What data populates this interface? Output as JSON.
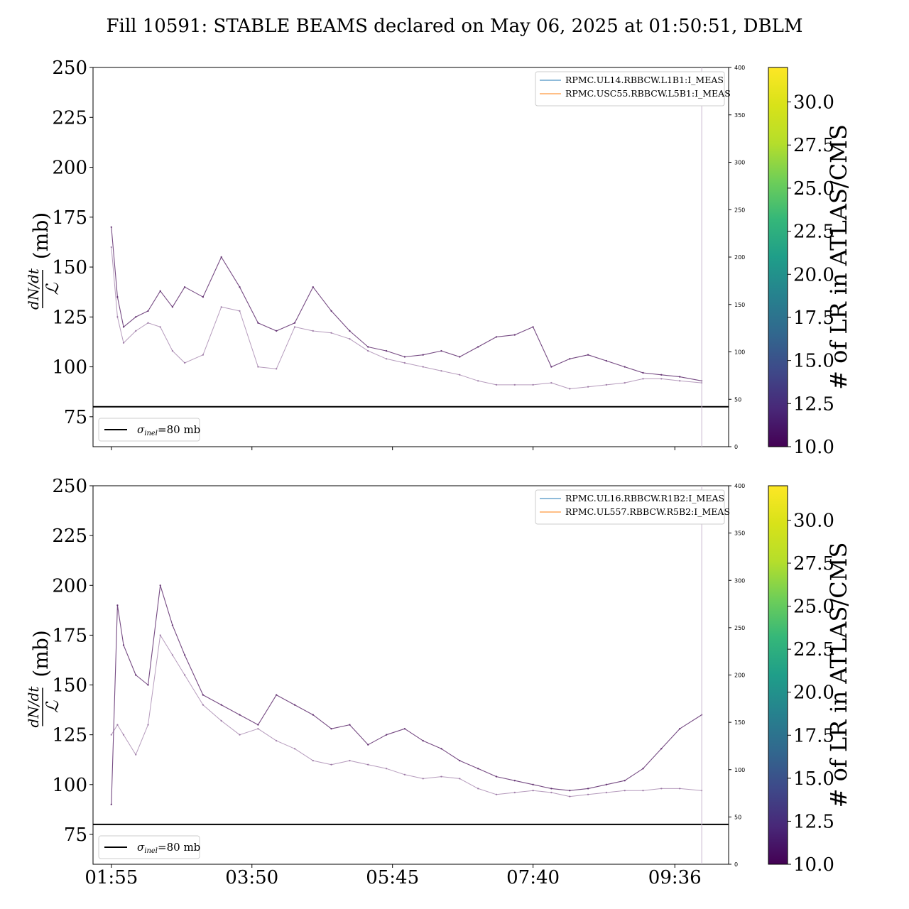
{
  "title": "Fill 10591: STABLE BEAMS declared on May 06, 2025 at 01:50:51, DBLM",
  "chart_data": [
    {
      "type": "line",
      "panel": "top",
      "ylabel_frac_num": "dN/dt",
      "ylabel_frac_den": "ℒ",
      "ylabel_unit": "(mb)",
      "ylim": [
        60,
        250
      ],
      "yticks": [
        75,
        100,
        125,
        150,
        175,
        200,
        225,
        250
      ],
      "y2lim": [
        0,
        400
      ],
      "y2ticks": [
        0,
        50,
        100,
        150,
        200,
        250,
        300,
        350,
        400
      ],
      "xlim": [
        "01:40",
        "10:20"
      ],
      "xticks": [
        "01:55",
        "03:50",
        "05:45",
        "07:40",
        "09:36"
      ],
      "xtick_labels_shown": false,
      "legend_upper": [
        "RPMC.UL14.RBBCW.L1B1:I_MEAS",
        "RPMC.USC55.RBBCW.L5B1:I_MEAS"
      ],
      "legend_upper_colors": [
        "#1f77b4",
        "#ff7f0e"
      ],
      "hline": {
        "value": 80,
        "label_sym": "σ",
        "label_sub": "inel",
        "label_val": "=80 mb"
      },
      "colorbar": {
        "label": "# of LR in ATLAS/CMS",
        "min": 10.0,
        "max": 32.0,
        "ticks": [
          "10.0",
          "12.5",
          "15.0",
          "17.5",
          "20.0",
          "22.5",
          "25.0",
          "27.5",
          "30.0"
        ]
      },
      "series": [
        {
          "x": [
            "01:55",
            "02:00",
            "02:05",
            "02:15",
            "02:25",
            "02:35",
            "02:45",
            "02:55",
            "03:10",
            "03:25",
            "03:40",
            "03:55",
            "04:10",
            "04:25",
            "04:40",
            "04:55",
            "05:10",
            "05:25",
            "05:40",
            "05:55",
            "06:10",
            "06:25",
            "06:40",
            "06:55",
            "07:10",
            "07:25",
            "07:40",
            "07:55",
            "08:10",
            "08:25",
            "08:40",
            "08:55",
            "09:10",
            "09:25",
            "09:40",
            "09:58"
          ],
          "y": [
            170,
            135,
            120,
            125,
            128,
            138,
            130,
            140,
            135,
            155,
            140,
            122,
            118,
            122,
            140,
            128,
            118,
            110,
            108,
            105,
            106,
            108,
            105,
            110,
            115,
            116,
            120,
            100,
            104,
            106,
            103,
            100,
            97,
            96,
            95,
            93
          ]
        },
        {
          "x": [
            "01:55",
            "02:00",
            "02:05",
            "02:15",
            "02:25",
            "02:35",
            "02:45",
            "02:55",
            "03:10",
            "03:25",
            "03:40",
            "03:55",
            "04:10",
            "04:25",
            "04:40",
            "04:55",
            "05:10",
            "05:25",
            "05:40",
            "05:55",
            "06:10",
            "06:25",
            "06:40",
            "06:55",
            "07:10",
            "07:25",
            "07:40",
            "07:55",
            "08:10",
            "08:25",
            "08:40",
            "08:55",
            "09:10",
            "09:25",
            "09:40",
            "09:58"
          ],
          "y": [
            160,
            125,
            112,
            118,
            122,
            120,
            108,
            102,
            106,
            130,
            128,
            100,
            99,
            120,
            118,
            117,
            114,
            108,
            104,
            102,
            100,
            98,
            96,
            93,
            91,
            91,
            91,
            92,
            89,
            90,
            91,
            92,
            94,
            94,
            93,
            92
          ]
        }
      ]
    },
    {
      "type": "line",
      "panel": "bottom",
      "ylabel_frac_num": "dN/dt",
      "ylabel_frac_den": "ℒ",
      "ylabel_unit": "(mb)",
      "ylim": [
        60,
        250
      ],
      "yticks": [
        75,
        100,
        125,
        150,
        175,
        200,
        225,
        250
      ],
      "y2lim": [
        0,
        400
      ],
      "y2ticks": [
        0,
        50,
        100,
        150,
        200,
        250,
        300,
        350,
        400
      ],
      "xlim": [
        "01:40",
        "10:20"
      ],
      "xticks": [
        "01:55",
        "03:50",
        "05:45",
        "07:40",
        "09:36"
      ],
      "xtick_labels_shown": true,
      "legend_upper": [
        "RPMC.UL16.RBBCW.R1B2:I_MEAS",
        "RPMC.UL557.RBBCW.R5B2:I_MEAS"
      ],
      "legend_upper_colors": [
        "#1f77b4",
        "#ff7f0e"
      ],
      "hline": {
        "value": 80,
        "label_sym": "σ",
        "label_sub": "inel",
        "label_val": "=80 mb"
      },
      "colorbar": {
        "label": "# of LR in ATLAS/CMS",
        "min": 10.0,
        "max": 32.0,
        "ticks": [
          "10.0",
          "12.5",
          "15.0",
          "17.5",
          "20.0",
          "22.5",
          "25.0",
          "27.5",
          "30.0"
        ]
      },
      "series": [
        {
          "x": [
            "01:55",
            "02:00",
            "02:05",
            "02:15",
            "02:25",
            "02:35",
            "02:45",
            "02:55",
            "03:10",
            "03:25",
            "03:40",
            "03:55",
            "04:10",
            "04:25",
            "04:40",
            "04:55",
            "05:10",
            "05:25",
            "05:40",
            "05:55",
            "06:10",
            "06:25",
            "06:40",
            "06:55",
            "07:10",
            "07:25",
            "07:40",
            "07:55",
            "08:10",
            "08:25",
            "08:40",
            "08:55",
            "09:10",
            "09:25",
            "09:40",
            "09:58"
          ],
          "y": [
            90,
            190,
            170,
            155,
            150,
            200,
            180,
            165,
            145,
            140,
            135,
            130,
            145,
            140,
            135,
            128,
            130,
            120,
            125,
            128,
            122,
            118,
            112,
            108,
            104,
            102,
            100,
            98,
            97,
            98,
            100,
            102,
            108,
            118,
            128,
            135
          ]
        },
        {
          "x": [
            "01:55",
            "02:00",
            "02:05",
            "02:15",
            "02:25",
            "02:35",
            "02:45",
            "02:55",
            "03:10",
            "03:25",
            "03:40",
            "03:55",
            "04:10",
            "04:25",
            "04:40",
            "04:55",
            "05:10",
            "05:25",
            "05:40",
            "05:55",
            "06:10",
            "06:25",
            "06:40",
            "06:55",
            "07:10",
            "07:25",
            "07:40",
            "07:55",
            "08:10",
            "08:25",
            "08:40",
            "08:55",
            "09:10",
            "09:25",
            "09:40",
            "09:58"
          ],
          "y": [
            125,
            130,
            125,
            115,
            130,
            175,
            165,
            155,
            140,
            132,
            125,
            128,
            122,
            118,
            112,
            110,
            112,
            110,
            108,
            105,
            103,
            104,
            103,
            98,
            95,
            96,
            97,
            96,
            94,
            95,
            96,
            97,
            97,
            98,
            98,
            97
          ]
        }
      ]
    }
  ]
}
